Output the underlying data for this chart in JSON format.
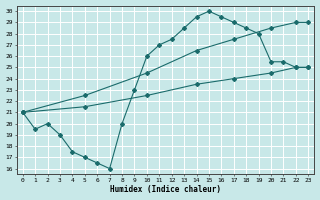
{
  "xlabel": "Humidex (Indice chaleur)",
  "xlim": [
    -0.5,
    23.5
  ],
  "ylim": [
    15.5,
    30.5
  ],
  "xticks": [
    0,
    1,
    2,
    3,
    4,
    5,
    6,
    7,
    8,
    9,
    10,
    11,
    12,
    13,
    14,
    15,
    16,
    17,
    18,
    19,
    20,
    21,
    22,
    23
  ],
  "yticks": [
    16,
    17,
    18,
    19,
    20,
    21,
    22,
    23,
    24,
    25,
    26,
    27,
    28,
    29,
    30
  ],
  "background_color": "#c8e8e8",
  "grid_color": "#ffffff",
  "line_color": "#1a6b6b",
  "lines": [
    {
      "x": [
        0,
        1,
        2,
        3,
        4,
        5,
        6,
        7,
        8,
        9,
        10,
        11,
        12,
        13,
        14,
        15,
        16,
        17,
        18,
        19,
        20,
        21,
        22,
        23
      ],
      "y": [
        21,
        19.5,
        20,
        19,
        17.5,
        17,
        16.5,
        16,
        20,
        23,
        26,
        27,
        27.5,
        28.5,
        29.5,
        30,
        29.5,
        29,
        28.5,
        28,
        25.5,
        25.5,
        25,
        25
      ]
    },
    {
      "x": [
        0,
        5,
        10,
        14,
        17,
        20,
        22,
        23
      ],
      "y": [
        21,
        22.5,
        24.5,
        26.5,
        27.5,
        28.5,
        29,
        29
      ]
    },
    {
      "x": [
        0,
        5,
        10,
        14,
        17,
        20,
        22,
        23
      ],
      "y": [
        21,
        21.5,
        22.5,
        23.5,
        24,
        24.5,
        25,
        25
      ]
    }
  ]
}
